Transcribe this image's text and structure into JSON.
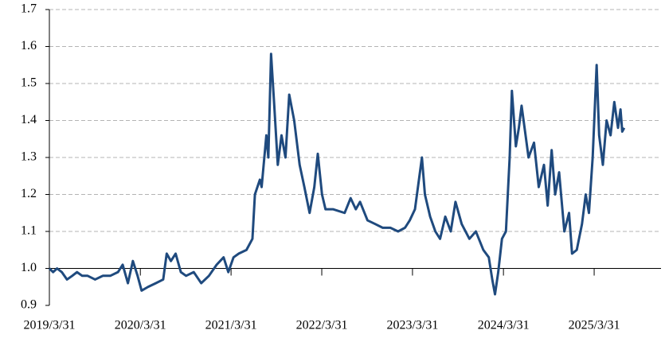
{
  "chart_data": {
    "type": "line",
    "x": [
      "2019/3/31",
      "2019/4/15",
      "2019/5/1",
      "2019/5/20",
      "2019/6/10",
      "2019/7/1",
      "2019/7/20",
      "2019/8/10",
      "2019/9/1",
      "2019/10/1",
      "2019/11/1",
      "2019/12/1",
      "2020/1/1",
      "2020/1/20",
      "2020/2/10",
      "2020/3/1",
      "2020/3/20",
      "2020/4/5",
      "2020/5/1",
      "2020/6/1",
      "2020/7/1",
      "2020/7/15",
      "2020/8/1",
      "2020/8/20",
      "2020/9/10",
      "2020/10/1",
      "2020/11/1",
      "2020/12/1",
      "2021/1/1",
      "2021/2/1",
      "2021/3/1",
      "2021/3/20",
      "2021/4/10",
      "2021/5/1",
      "2021/6/1",
      "2021/6/25",
      "2021/7/5",
      "2021/7/25",
      "2021/8/1",
      "2021/8/20",
      "2021/8/28",
      "2021/9/8",
      "2021/9/20",
      "2021/10/5",
      "2021/10/20",
      "2021/11/5",
      "2021/11/20",
      "2021/12/10",
      "2022/1/1",
      "2022/1/20",
      "2022/2/10",
      "2022/3/1",
      "2022/3/15",
      "2022/4/1",
      "2022/4/15",
      "2022/5/15",
      "2022/7/1",
      "2022/7/25",
      "2022/8/15",
      "2022/9/1",
      "2022/10/1",
      "2022/11/1",
      "2022/12/1",
      "2023/1/1",
      "2023/2/1",
      "2023/3/1",
      "2023/3/20",
      "2023/4/10",
      "2023/5/8",
      "2023/5/20",
      "2023/6/10",
      "2023/7/1",
      "2023/7/20",
      "2023/8/10",
      "2023/9/1",
      "2023/9/20",
      "2023/10/15",
      "2023/11/15",
      "2023/12/11",
      "2024/1/10",
      "2024/2/1",
      "2024/2/15",
      "2024/2/26",
      "2024/3/10",
      "2024/3/25",
      "2024/4/10",
      "2024/4/25",
      "2024/5/4",
      "2024/5/20",
      "2024/6/1",
      "2024/6/12",
      "2024/7/10",
      "2024/8/1",
      "2024/8/20",
      "2024/9/10",
      "2024/9/25",
      "2024/10/11",
      "2024/10/25",
      "2024/11/10",
      "2024/12/1",
      "2024/12/20",
      "2025/1/1",
      "2025/1/20",
      "2025/2/10",
      "2025/2/25",
      "2025/3/10",
      "2025/3/25",
      "2025/4/10",
      "2025/4/20",
      "2025/5/5",
      "2025/5/20",
      "2025/6/5",
      "2025/6/20",
      "2025/7/5",
      "2025/7/15",
      "2025/7/22",
      "2025/7/30"
    ],
    "series": [
      {
        "color": "#1f4a7e",
        "values": [
          1.0,
          0.99,
          1.0,
          0.99,
          0.97,
          0.98,
          0.99,
          0.98,
          0.98,
          0.97,
          0.98,
          0.98,
          0.99,
          1.01,
          0.96,
          1.02,
          0.98,
          0.94,
          0.95,
          0.96,
          0.97,
          1.04,
          1.02,
          1.04,
          0.99,
          0.98,
          0.99,
          0.96,
          0.98,
          1.01,
          1.03,
          0.99,
          1.03,
          1.04,
          1.05,
          1.08,
          1.2,
          1.24,
          1.22,
          1.36,
          1.3,
          1.58,
          1.45,
          1.28,
          1.36,
          1.3,
          1.47,
          1.4,
          1.28,
          1.22,
          1.15,
          1.22,
          1.31,
          1.2,
          1.16,
          1.16,
          1.15,
          1.19,
          1.16,
          1.18,
          1.13,
          1.12,
          1.11,
          1.11,
          1.1,
          1.11,
          1.13,
          1.16,
          1.3,
          1.2,
          1.14,
          1.1,
          1.08,
          1.14,
          1.1,
          1.18,
          1.12,
          1.08,
          1.1,
          1.05,
          1.03,
          0.97,
          0.93,
          0.99,
          1.08,
          1.1,
          1.3,
          1.48,
          1.33,
          1.38,
          1.44,
          1.3,
          1.34,
          1.22,
          1.28,
          1.17,
          1.32,
          1.2,
          1.26,
          1.1,
          1.15,
          1.04,
          1.05,
          1.12,
          1.2,
          1.15,
          1.3,
          1.55,
          1.36,
          1.28,
          1.4,
          1.36,
          1.45,
          1.38,
          1.43,
          1.37,
          1.38
        ]
      }
    ],
    "xlim": [
      "2019/3/31",
      "2025/12/25"
    ],
    "xticks": [
      "2019/3/31",
      "2020/3/31",
      "2021/3/31",
      "2022/3/31",
      "2023/3/31",
      "2024/3/31",
      "2025/3/31"
    ],
    "ylim": [
      0.9,
      1.7
    ],
    "yticks": [
      0.9,
      {
        "value": 1,
        "label": "1.0"
      },
      1.1,
      1.2,
      1.3,
      1.4,
      1.5,
      1.6,
      1.7
    ],
    "x_axis_at": 1,
    "grid": true
  }
}
